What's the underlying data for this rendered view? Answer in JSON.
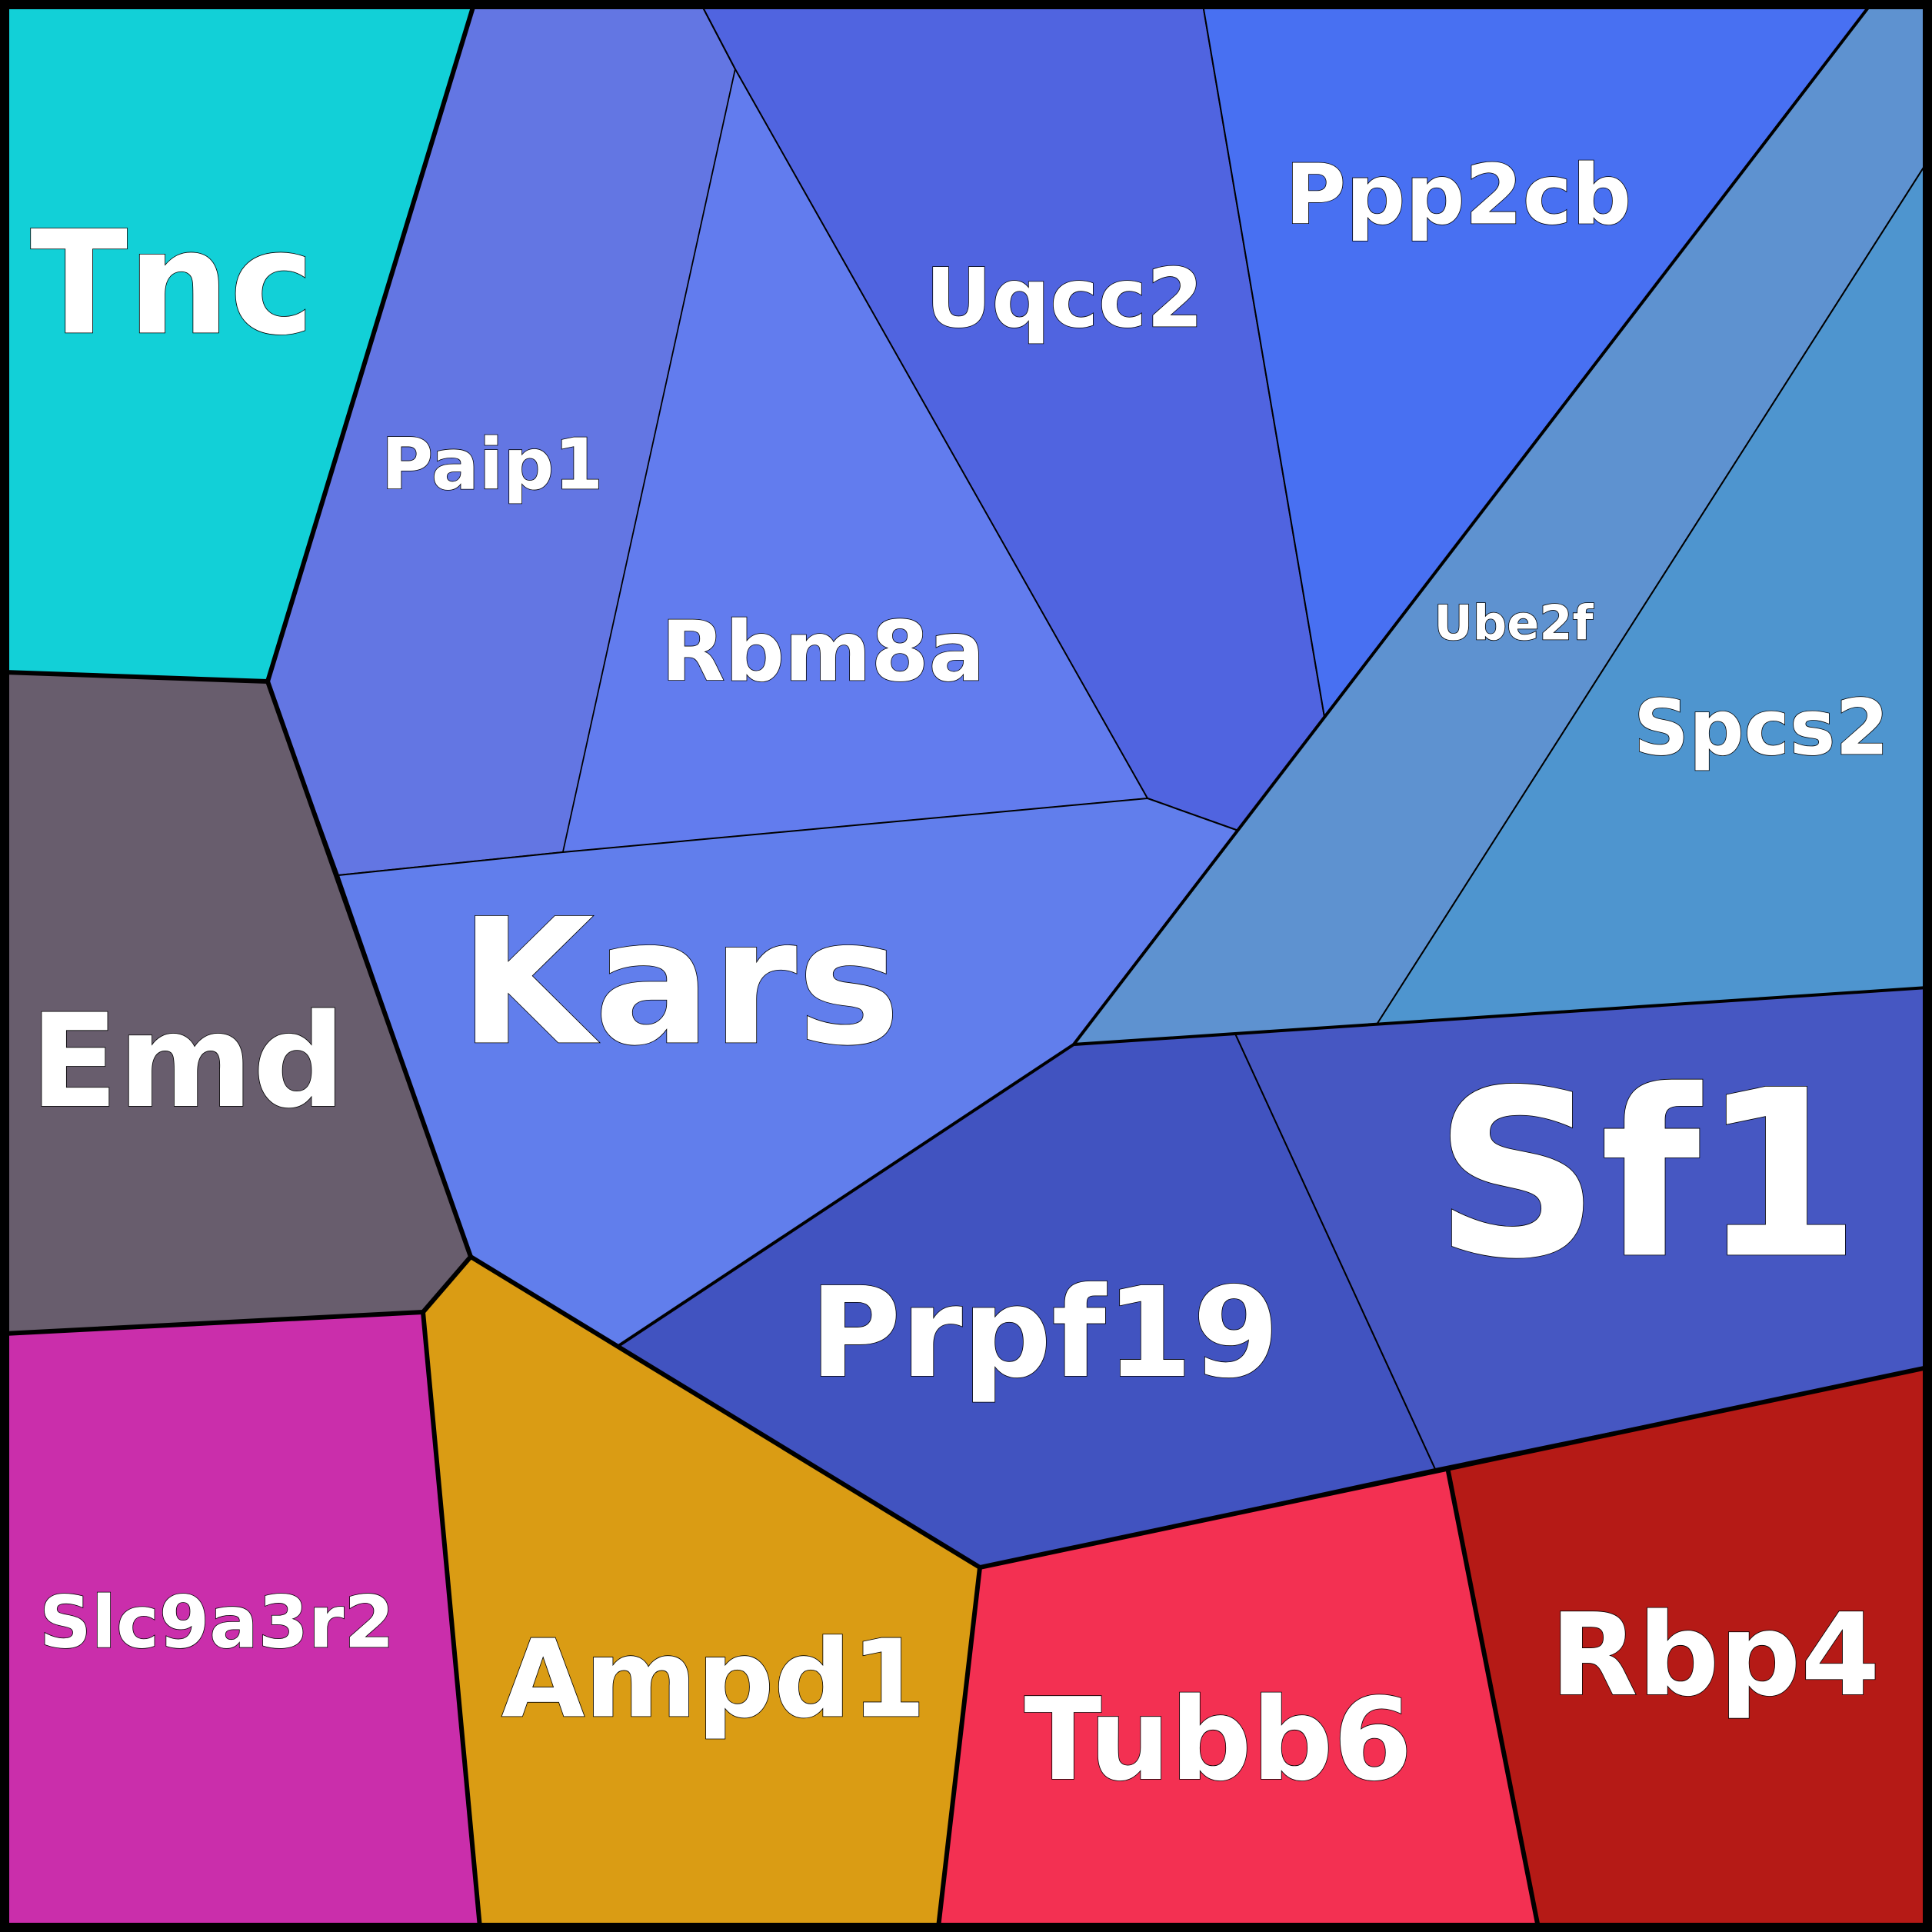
{
  "cells": [
    {
      "id": "tnc",
      "label": "Tnc",
      "color": "#12d0d7"
    },
    {
      "id": "paip1",
      "label": "Paip1",
      "color": "#6376e3"
    },
    {
      "id": "rbm8a",
      "label": "Rbm8a",
      "color": "#627cee"
    },
    {
      "id": "uqcc2",
      "label": "Uqcc2",
      "color": "#5064e0"
    },
    {
      "id": "ppp2cb",
      "label": "Ppp2cb",
      "color": "#4870f2"
    },
    {
      "id": "ube2f",
      "label": "Ube2f",
      "color": "#5e92d0"
    },
    {
      "id": "spcs2",
      "label": "Spcs2",
      "color": "#4e95cf"
    },
    {
      "id": "emd",
      "label": "Emd",
      "color": "#685d6d"
    },
    {
      "id": "kars",
      "label": "Kars",
      "color": "#617eec"
    },
    {
      "id": "prpf19",
      "label": "Prpf19",
      "color": "#4153c0"
    },
    {
      "id": "sf1",
      "label": "Sf1",
      "color": "#4657c2"
    },
    {
      "id": "slc9a3r2",
      "label": "Slc9a3r2",
      "color": "#ca2eab"
    },
    {
      "id": "ampd1",
      "label": "Ampd1",
      "color": "#da9c14"
    },
    {
      "id": "tubb6",
      "label": "Tubb6",
      "color": "#f33052"
    },
    {
      "id": "rbp4",
      "label": "Rbp4",
      "color": "#b51a16"
    }
  ]
}
